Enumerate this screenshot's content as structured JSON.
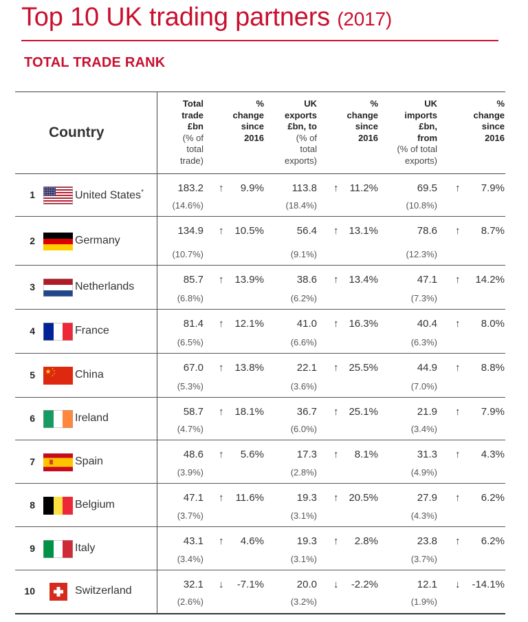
{
  "header": {
    "title": "Top 10 UK trading partners",
    "year": "(2017)",
    "subtitle": "TOTAL TRADE RANK"
  },
  "columns": {
    "country": "Country",
    "total": {
      "bold": [
        "Total",
        "trade",
        "£bn"
      ],
      "note": [
        "(% of",
        "total",
        "trade)"
      ]
    },
    "total_change": {
      "bold": [
        "%",
        "change",
        "since",
        "2016"
      ],
      "note": []
    },
    "exports": {
      "bold": [
        "UK",
        "exports",
        "£bn, to"
      ],
      "note": [
        "(% of",
        "total",
        "exports)"
      ]
    },
    "exports_change": {
      "bold": [
        "%",
        "change",
        "since",
        "2016"
      ],
      "note": []
    },
    "imports": {
      "bold": [
        "UK",
        "imports",
        "£bn,",
        "from"
      ],
      "note": [
        "(% of total",
        "exports)"
      ]
    },
    "imports_change": {
      "bold": [
        "%",
        "change",
        "since",
        "2016"
      ],
      "note": []
    }
  },
  "rows": [
    {
      "rank": "1",
      "country": "United States",
      "marker": "*",
      "flag": "us-flag",
      "total": "183.2",
      "total_pct": "(14.6%)",
      "total_change": "9.9%",
      "total_dir": "up",
      "exports": "113.8",
      "exports_pct": "(18.4%)",
      "exports_change": "11.2%",
      "exports_dir": "up",
      "imports": "69.5",
      "imports_pct": "(10.8%)",
      "imports_change": "7.9%",
      "imports_dir": "up"
    },
    {
      "rank": "2",
      "country": "Germany",
      "marker": "",
      "flag": "germany-flag",
      "total": "134.9",
      "total_pct": "(10.7%)",
      "total_change": "10.5%",
      "total_dir": "up",
      "exports": "56.4",
      "exports_pct": "(9.1%)",
      "exports_change": "13.1%",
      "exports_dir": "up",
      "imports": "78.6",
      "imports_pct": "(12.3%)",
      "imports_change": "8.7%",
      "imports_dir": "up"
    },
    {
      "rank": "3",
      "country": "Netherlands",
      "marker": "",
      "flag": "netherlands-flag",
      "total": "85.7",
      "total_pct": "(6.8%)",
      "total_change": "13.9%",
      "total_dir": "up",
      "exports": "38.6",
      "exports_pct": "(6.2%)",
      "exports_change": "13.4%",
      "exports_dir": "up",
      "imports": "47.1",
      "imports_pct": "(7.3%)",
      "imports_change": "14.2%",
      "imports_dir": "up"
    },
    {
      "rank": "4",
      "country": "France",
      "marker": "",
      "flag": "france-flag",
      "total": "81.4",
      "total_pct": "(6.5%)",
      "total_change": "12.1%",
      "total_dir": "up",
      "exports": "41.0",
      "exports_pct": "(6.6%)",
      "exports_change": "16.3%",
      "exports_dir": "up",
      "imports": "40.4",
      "imports_pct": "(6.3%)",
      "imports_change": "8.0%",
      "imports_dir": "up"
    },
    {
      "rank": "5",
      "country": "China",
      "marker": "",
      "flag": "china-flag",
      "total": "67.0",
      "total_pct": "(5.3%)",
      "total_change": "13.8%",
      "total_dir": "up",
      "exports": "22.1",
      "exports_pct": "(3.6%)",
      "exports_change": "25.5%",
      "exports_dir": "up",
      "imports": "44.9",
      "imports_pct": "(7.0%)",
      "imports_change": "8.8%",
      "imports_dir": "up"
    },
    {
      "rank": "6",
      "country": "Ireland",
      "marker": "",
      "flag": "ireland-flag",
      "total": "58.7",
      "total_pct": "(4.7%)",
      "total_change": "18.1%",
      "total_dir": "up",
      "exports": "36.7",
      "exports_pct": "(6.0%)",
      "exports_change": "25.1%",
      "exports_dir": "up",
      "imports": "21.9",
      "imports_pct": "(3.4%)",
      "imports_change": "7.9%",
      "imports_dir": "up"
    },
    {
      "rank": "7",
      "country": "Spain",
      "marker": "",
      "flag": "spain-flag",
      "total": "48.6",
      "total_pct": "(3.9%)",
      "total_change": "5.6%",
      "total_dir": "up",
      "exports": "17.3",
      "exports_pct": "(2.8%)",
      "exports_change": "8.1%",
      "exports_dir": "up",
      "imports": "31.3",
      "imports_pct": "(4.9%)",
      "imports_change": "4.3%",
      "imports_dir": "up"
    },
    {
      "rank": "8",
      "country": "Belgium",
      "marker": "",
      "flag": "belgium-flag",
      "total": "47.1",
      "total_pct": "(3.7%)",
      "total_change": "11.6%",
      "total_dir": "up",
      "exports": "19.3",
      "exports_pct": "(3.1%)",
      "exports_change": "20.5%",
      "exports_dir": "up",
      "imports": "27.9",
      "imports_pct": "(4.3%)",
      "imports_change": "6.2%",
      "imports_dir": "up"
    },
    {
      "rank": "9",
      "country": "Italy",
      "marker": "",
      "flag": "italy-flag",
      "total": "43.1",
      "total_pct": "(3.4%)",
      "total_change": "4.6%",
      "total_dir": "up",
      "exports": "19.3",
      "exports_pct": "(3.1%)",
      "exports_change": "2.8%",
      "exports_dir": "up",
      "imports": "23.8",
      "imports_pct": "(3.7%)",
      "imports_change": "6.2%",
      "imports_dir": "up"
    },
    {
      "rank": "10",
      "country": "Switzerland",
      "marker": "",
      "flag": "switzerland-flag",
      "total": "32.1",
      "total_pct": "(2.6%)",
      "total_change": "-7.1%",
      "total_dir": "down",
      "exports": "20.0",
      "exports_pct": "(3.2%)",
      "exports_change": "-2.2%",
      "exports_dir": "down",
      "imports": "12.1",
      "imports_pct": "(1.9%)",
      "imports_change": "-14.1%",
      "imports_dir": "down"
    }
  ]
}
